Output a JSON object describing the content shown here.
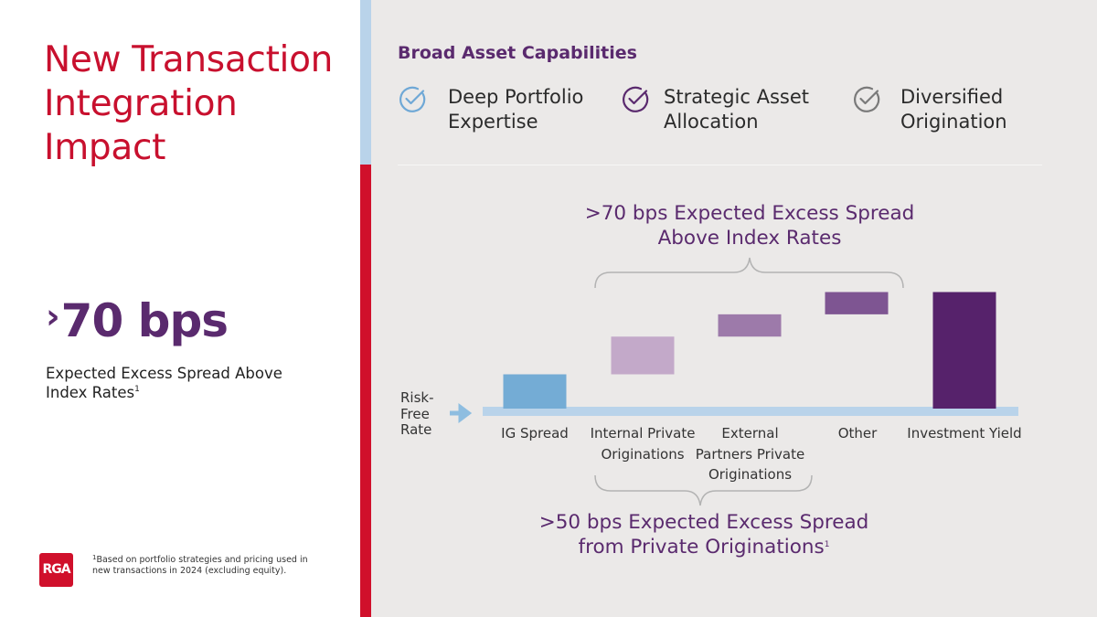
{
  "left": {
    "title": "New Transaction Integration Impact",
    "stat_prefix": "›",
    "stat_value": "70 bps",
    "stat_desc": "Expected Excess Spread Above Index Rates",
    "stat_desc_sup": "1",
    "logo_text": "RGA",
    "footnote_num": "1",
    "footnote_text": "Based on portfolio strategies and pricing used in new transactions in 2024 (excluding equity)."
  },
  "capabilities": {
    "heading": "Broad Asset Capabilities",
    "items": [
      {
        "label": "Deep Portfolio Expertise",
        "icon": "check-circle-icon",
        "color": "#6fa8d6"
      },
      {
        "label": "Strategic Asset Allocation",
        "icon": "check-circle-icon",
        "color": "#5a2a6e"
      },
      {
        "label": "Diversified Origination",
        "icon": "check-circle-icon",
        "color": "#7a7a7a"
      }
    ]
  },
  "callouts": {
    "top": ">70 bps Expected Excess Spread Above Index Rates",
    "bottom": ">50 bps Expected Excess Spread from Private Originations",
    "bottom_sup": "1"
  },
  "chart_data": {
    "type": "bar",
    "baseline_label": "Risk-Free Rate",
    "categories": [
      "IG Spread",
      "Internal Private Originations",
      "External Partners Private Originations",
      "Other",
      "Investment Yield"
    ],
    "values": [
      1.0,
      1.1,
      0.65,
      0.65,
      3.4
    ],
    "colors": [
      "#74acd5",
      "#c3a9c9",
      "#9d7aaa",
      "#7e5592",
      "#56226b"
    ]
  },
  "colors": {
    "brand_red": "#d0102b",
    "accent_purple": "#5a2a6e",
    "panel_bg": "#ebe9e8",
    "baseline_blue": "#b9d3ea"
  }
}
